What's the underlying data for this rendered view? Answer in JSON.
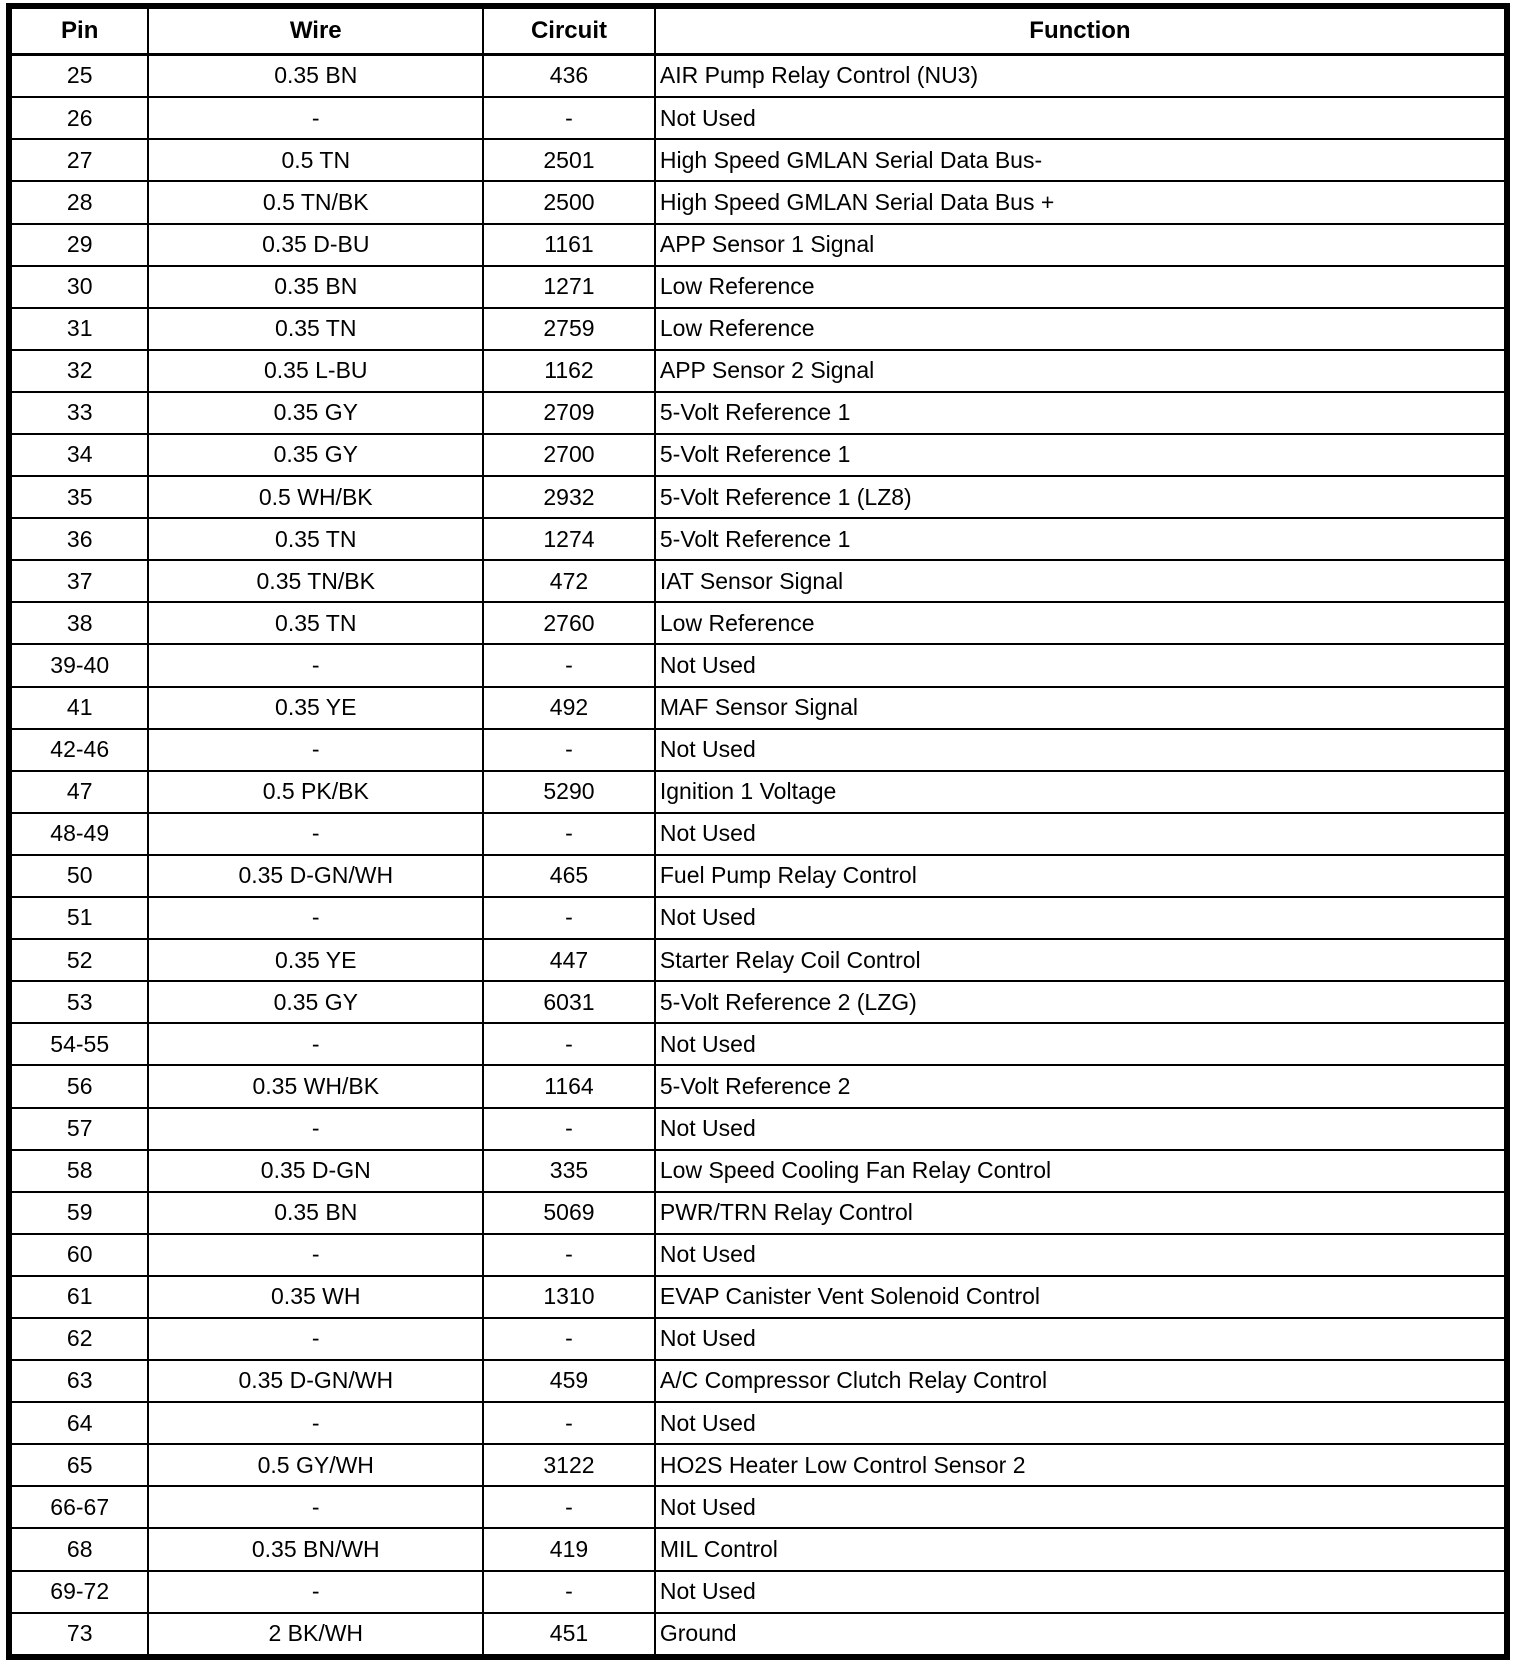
{
  "table": {
    "columns": [
      "Pin",
      "Wire",
      "Circuit",
      "Function"
    ],
    "rows": [
      [
        "25",
        "0.35 BN",
        "436",
        "AIR Pump Relay Control (NU3)"
      ],
      [
        "26",
        "-",
        "-",
        "Not Used"
      ],
      [
        "27",
        "0.5 TN",
        "2501",
        "High Speed GMLAN Serial Data Bus-"
      ],
      [
        "28",
        "0.5 TN/BK",
        "2500",
        "High Speed GMLAN Serial Data Bus +"
      ],
      [
        "29",
        "0.35 D-BU",
        "1161",
        "APP Sensor 1 Signal"
      ],
      [
        "30",
        "0.35 BN",
        "1271",
        "Low Reference"
      ],
      [
        "31",
        "0.35 TN",
        "2759",
        "Low Reference"
      ],
      [
        "32",
        "0.35 L-BU",
        "1162",
        "APP Sensor 2 Signal"
      ],
      [
        "33",
        "0.35 GY",
        "2709",
        "5-Volt Reference 1"
      ],
      [
        "34",
        "0.35 GY",
        "2700",
        "5-Volt Reference 1"
      ],
      [
        "35",
        "0.5 WH/BK",
        "2932",
        "5-Volt Reference 1 (LZ8)"
      ],
      [
        "36",
        "0.35 TN",
        "1274",
        "5-Volt Reference 1"
      ],
      [
        "37",
        "0.35 TN/BK",
        "472",
        "IAT Sensor Signal"
      ],
      [
        "38",
        "0.35 TN",
        "2760",
        "Low Reference"
      ],
      [
        "39-40",
        "-",
        "-",
        "Not Used"
      ],
      [
        "41",
        "0.35 YE",
        "492",
        "MAF Sensor Signal"
      ],
      [
        "42-46",
        "-",
        "-",
        "Not Used"
      ],
      [
        "47",
        "0.5 PK/BK",
        "5290",
        "Ignition 1 Voltage"
      ],
      [
        "48-49",
        "-",
        "-",
        "Not Used"
      ],
      [
        "50",
        "0.35 D-GN/WH",
        "465",
        "Fuel Pump Relay Control"
      ],
      [
        "51",
        "-",
        "-",
        "Not Used"
      ],
      [
        "52",
        "0.35 YE",
        "447",
        "Starter Relay Coil Control"
      ],
      [
        "53",
        "0.35 GY",
        "6031",
        "5-Volt Reference 2 (LZG)"
      ],
      [
        "54-55",
        "-",
        "-",
        "Not Used"
      ],
      [
        "56",
        "0.35 WH/BK",
        "1164",
        "5-Volt Reference 2"
      ],
      [
        "57",
        "-",
        "-",
        "Not Used"
      ],
      [
        "58",
        "0.35 D-GN",
        "335",
        "Low Speed Cooling Fan Relay Control"
      ],
      [
        "59",
        "0.35 BN",
        "5069",
        "PWR/TRN Relay Control"
      ],
      [
        "60",
        "-",
        "-",
        "Not Used"
      ],
      [
        "61",
        "0.35 WH",
        "1310",
        "EVAP Canister Vent Solenoid Control"
      ],
      [
        "62",
        "-",
        "-",
        "Not Used"
      ],
      [
        "63",
        "0.35 D-GN/WH",
        "459",
        "A/C Compressor Clutch Relay Control"
      ],
      [
        "64",
        "-",
        "-",
        "Not Used"
      ],
      [
        "65",
        "0.5 GY/WH",
        "3122",
        "HO2S Heater Low Control Sensor 2"
      ],
      [
        "66-67",
        "-",
        "-",
        "Not Used"
      ],
      [
        "68",
        "0.35 BN/WH",
        "419",
        "MIL Control"
      ],
      [
        "69-72",
        "-",
        "-",
        "Not Used"
      ],
      [
        "73",
        "2 BK/WH",
        "451",
        "Ground"
      ]
    ]
  }
}
